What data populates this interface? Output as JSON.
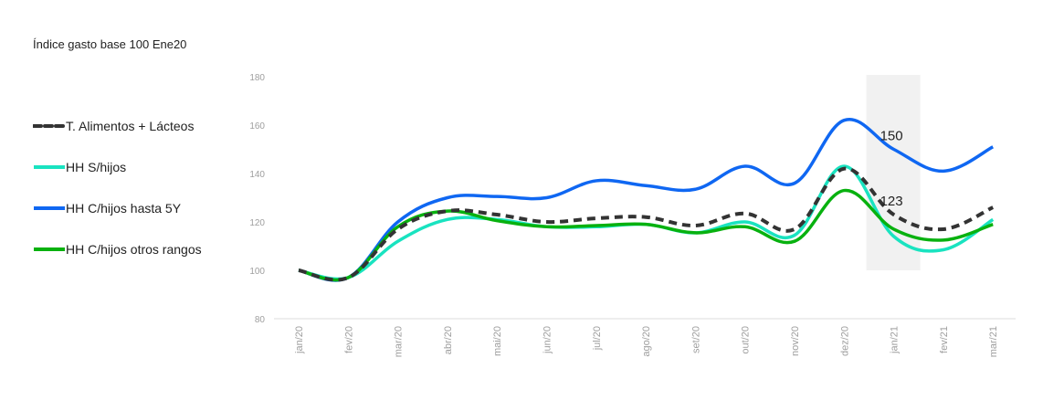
{
  "title": "Índice gasto base 100 Ene20",
  "legend": [
    {
      "label": "T. Alimentos + Lácteos",
      "color": "#333333",
      "dashed": true
    },
    {
      "label": "HH S/hijos",
      "color": "#19e3c0",
      "dashed": false
    },
    {
      "label": "HH C/hijos hasta 5Y",
      "color": "#0f67f2",
      "dashed": false
    },
    {
      "label": "HH C/hijos otros rangos",
      "color": "#08b10f",
      "dashed": false
    }
  ],
  "annotations": [
    {
      "text": "150",
      "series": "HH C/hijos hasta 5Y",
      "x": "jan/21"
    },
    {
      "text": "123",
      "series": "T. Alimentos + Lácteos",
      "x": "jan/21"
    }
  ],
  "highlight_band": {
    "x": "jan/21",
    "color": "#f1f1f1"
  },
  "chart_data": {
    "type": "line",
    "title": "Índice gasto base 100 Ene20",
    "xlabel": "",
    "ylabel": "",
    "ylim": [
      80,
      180
    ],
    "yticks": [
      80,
      100,
      120,
      140,
      160,
      180
    ],
    "grid": false,
    "legend_position": "left",
    "categories": [
      "jan/20",
      "fev/20",
      "mar/20",
      "abr/20",
      "mai/20",
      "jun/20",
      "jul/20",
      "ago/20",
      "set/20",
      "out/20",
      "nov/20",
      "dez/20",
      "jan/21",
      "fev/21",
      "mar/21"
    ],
    "series": [
      {
        "name": "T. Alimentos + Lácteos",
        "color": "#333333",
        "dashed": true,
        "values": [
          100,
          97,
          117,
          124.5,
          123,
          120,
          121.5,
          122,
          118.5,
          123.5,
          117,
          142,
          123,
          117,
          126
        ]
      },
      {
        "name": "HH S/hijos",
        "color": "#19e3c0",
        "dashed": false,
        "values": [
          100,
          97,
          112,
          121,
          121,
          118,
          118,
          119,
          115.5,
          120,
          114.5,
          143,
          114,
          108.5,
          121
        ]
      },
      {
        "name": "HH C/hijos hasta 5Y",
        "color": "#0f67f2",
        "dashed": false,
        "values": [
          100,
          97,
          120,
          130,
          130.5,
          130,
          137,
          135,
          133.5,
          143,
          136,
          162,
          150,
          141,
          151
        ]
      },
      {
        "name": "HH C/hijos otros rangos",
        "color": "#08b10f",
        "dashed": false,
        "values": [
          100,
          97,
          118,
          124.5,
          120.5,
          118,
          118.5,
          119,
          115.5,
          118,
          112,
          133,
          117,
          112.5,
          119
        ]
      }
    ]
  }
}
